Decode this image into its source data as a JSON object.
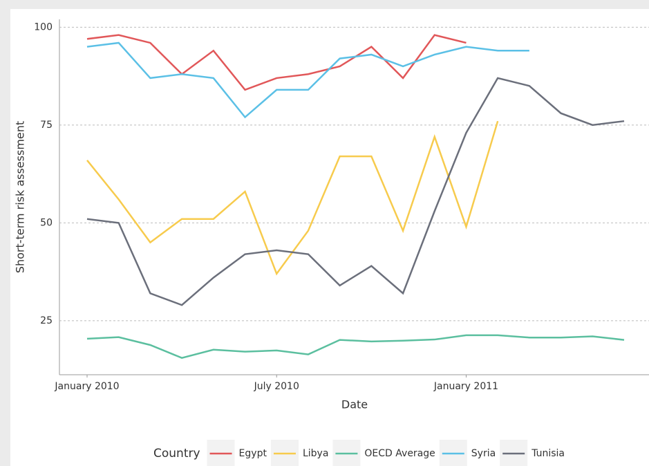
{
  "chart_data": {
    "type": "line",
    "x_label": "Date",
    "y_label": "Short-term risk assessment",
    "legend_title": "Country",
    "x": [
      "2010-01",
      "2010-02",
      "2010-03",
      "2010-04",
      "2010-05",
      "2010-06",
      "2010-07",
      "2010-08",
      "2010-09",
      "2010-10",
      "2010-11",
      "2010-12",
      "2011-01",
      "2011-02",
      "2011-03",
      "2011-04",
      "2011-05",
      "2011-06"
    ],
    "xticks": [
      {
        "value": "2010-01",
        "label": "January 2010"
      },
      {
        "value": "2010-07",
        "label": "July 2010"
      },
      {
        "value": "2011-01",
        "label": "January 2011"
      }
    ],
    "ylim": [
      11.2,
      102
    ],
    "yticks": [
      25,
      50,
      75,
      100
    ],
    "grid": true,
    "legend": "bottom",
    "series": [
      {
        "name": "Egypt",
        "color": "#e15759",
        "values": [
          97,
          98,
          96,
          88,
          94,
          84,
          87,
          88,
          90,
          95,
          87,
          98,
          96,
          null,
          null,
          null,
          null,
          null
        ]
      },
      {
        "name": "Libya",
        "color": "#f7cb4d",
        "values": [
          66,
          56,
          45,
          51,
          51,
          58,
          37,
          48,
          67,
          67,
          48,
          72,
          49,
          76,
          null,
          null,
          null,
          null
        ]
      },
      {
        "name": "OECD Average",
        "color": "#5bbf9f",
        "values": [
          20.4,
          20.8,
          18.8,
          15.5,
          17.6,
          17.1,
          17.4,
          16.4,
          20.1,
          19.7,
          19.9,
          20.2,
          21.3,
          21.3,
          20.7,
          20.7,
          21.0,
          20.1
        ]
      },
      {
        "name": "Syria",
        "color": "#5bc0e6",
        "values": [
          95,
          96,
          87,
          88,
          87,
          77,
          84,
          84,
          92,
          93,
          90,
          93,
          95,
          94,
          94,
          null,
          null,
          null
        ]
      },
      {
        "name": "Tunisia",
        "color": "#6b6f7b",
        "values": [
          51,
          50,
          32,
          29,
          36,
          42,
          43,
          42,
          34,
          39,
          32,
          53,
          73,
          87,
          85,
          78,
          75,
          76
        ]
      }
    ]
  }
}
